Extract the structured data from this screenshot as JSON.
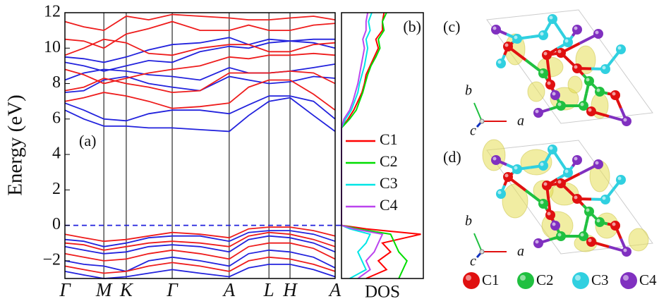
{
  "chart_data": [
    {
      "type": "line",
      "panel_label": "(a)",
      "ylabel": "Energy (eV)",
      "x": [
        0,
        0.07,
        0.144,
        0.227,
        0.31,
        0.397,
        0.5,
        0.608,
        0.68,
        0.755,
        0.833,
        0.92,
        1
      ],
      "xlim": [
        0,
        1
      ],
      "xticks": [
        {
          "value": 0,
          "label": "Γ"
        },
        {
          "value": 0.144,
          "label": "M"
        },
        {
          "value": 0.227,
          "label": "K"
        },
        {
          "value": 0.397,
          "label": "Γ"
        },
        {
          "value": 0.608,
          "label": "A"
        },
        {
          "value": 0.755,
          "label": "L"
        },
        {
          "value": 0.833,
          "label": "H"
        },
        {
          "value": 1,
          "label": "A"
        }
      ],
      "ylim": [
        -3,
        12
      ],
      "yticks": [
        {
          "value": -2,
          "label": "−2"
        },
        0,
        2,
        4,
        6,
        8,
        10,
        12
      ],
      "fermi_level": 0,
      "series": [
        {
          "color": "#2222dd",
          "values": [
            6.5,
            6.0,
            5.6,
            5.6,
            5.5,
            5.5,
            5.4,
            5.3,
            6.2,
            7.0,
            7.2,
            6.2,
            5.3
          ]
        },
        {
          "color": "#2222dd",
          "values": [
            6.9,
            6.5,
            6.0,
            5.9,
            6.3,
            6.5,
            6.5,
            6.3,
            6.8,
            7.3,
            7.3,
            7.0,
            6.0
          ]
        },
        {
          "color": "#2222dd",
          "values": [
            7.5,
            7.6,
            8.2,
            8.4,
            8.0,
            7.8,
            7.6,
            8.4,
            8.2,
            8.0,
            8.1,
            8.4,
            8.3
          ]
        },
        {
          "color": "#2222dd",
          "values": [
            8.2,
            8.6,
            8.8,
            8.7,
            8.5,
            8.4,
            8.2,
            8.9,
            8.6,
            8.6,
            8.7,
            8.9,
            9.1
          ]
        },
        {
          "color": "#2222dd",
          "values": [
            9.2,
            9.0,
            8.7,
            9.0,
            9.3,
            9.2,
            9.8,
            10.1,
            10.0,
            10.3,
            10.4,
            10.3,
            10.0
          ]
        },
        {
          "color": "#2222dd",
          "values": [
            9.5,
            9.4,
            9.2,
            9.5,
            9.9,
            10.2,
            10.3,
            10.6,
            10.2,
            10.5,
            10.4,
            10.5,
            10.5
          ]
        },
        {
          "color": "#ee1c1c",
          "values": [
            7.0,
            7.2,
            7.5,
            7.3,
            7.0,
            6.6,
            6.7,
            6.9,
            7.8,
            8.2,
            8.2,
            7.4,
            6.5
          ]
        },
        {
          "color": "#ee1c1c",
          "values": [
            7.6,
            7.8,
            8.3,
            8.0,
            7.8,
            7.5,
            7.6,
            8.6,
            8.6,
            8.6,
            8.7,
            8.6,
            8.0
          ]
        },
        {
          "color": "#ee1c1c",
          "values": [
            8.8,
            8.5,
            8.0,
            8.3,
            8.6,
            8.8,
            9.0,
            9.5,
            9.4,
            9.6,
            9.6,
            9.7,
            9.6
          ]
        },
        {
          "color": "#ee1c1c",
          "values": [
            9.6,
            10.0,
            10.5,
            10.3,
            9.7,
            9.6,
            10.0,
            10.2,
            10.2,
            9.8,
            9.8,
            10.2,
            10.3
          ]
        },
        {
          "color": "#ee1c1c",
          "values": [
            10.5,
            10.4,
            10.0,
            10.8,
            11.1,
            11.5,
            11.0,
            11.0,
            11.3,
            11.0,
            11.0,
            11.3,
            11.4
          ]
        },
        {
          "color": "#ee1c1c",
          "values": [
            11.5,
            11.2,
            11.0,
            11.8,
            11.6,
            11.9,
            11.8,
            11.7,
            11.6,
            11.6,
            11.7,
            11.8,
            11.6
          ]
        },
        {
          "color": "#2222dd",
          "values": [
            -0.8,
            -0.9,
            -1.2,
            -1.0,
            -0.7,
            -0.6,
            -0.6,
            -0.9,
            -0.4,
            -0.3,
            -0.3,
            -0.5,
            -0.9
          ]
        },
        {
          "color": "#2222dd",
          "values": [
            -1.2,
            -1.4,
            -1.6,
            -1.5,
            -1.2,
            -1.1,
            -1.2,
            -1.5,
            -0.8,
            -0.6,
            -0.7,
            -1.0,
            -1.5
          ]
        },
        {
          "color": "#2222dd",
          "values": [
            -2.0,
            -2.2,
            -2.3,
            -2.6,
            -2.0,
            -1.8,
            -2.0,
            -2.3,
            -1.6,
            -1.4,
            -1.5,
            -1.8,
            -2.4
          ]
        },
        {
          "color": "#2222dd",
          "values": [
            -2.6,
            -2.8,
            -3.0,
            -2.9,
            -2.7,
            -2.5,
            -2.7,
            -2.9,
            -2.4,
            -2.2,
            -2.2,
            -2.5,
            -2.9
          ]
        },
        {
          "color": "#ee1c1c",
          "values": [
            -0.5,
            -0.7,
            -0.9,
            -0.8,
            -0.6,
            -0.4,
            -0.5,
            -0.7,
            -0.2,
            -0.1,
            -0.1,
            -0.3,
            -0.6
          ]
        },
        {
          "color": "#ee1c1c",
          "values": [
            -1.0,
            -1.1,
            -1.4,
            -1.2,
            -1.0,
            -0.9,
            -1.0,
            -1.2,
            -0.6,
            -0.4,
            -0.5,
            -0.8,
            -1.2
          ]
        },
        {
          "color": "#ee1c1c",
          "values": [
            -1.6,
            -1.8,
            -2.0,
            -1.9,
            -1.6,
            -1.4,
            -1.6,
            -1.9,
            -1.2,
            -1.0,
            -1.0,
            -1.3,
            -1.9
          ]
        },
        {
          "color": "#ee1c1c",
          "values": [
            -2.3,
            -2.5,
            -2.7,
            -2.6,
            -2.3,
            -2.1,
            -2.3,
            -2.6,
            -2.0,
            -1.8,
            -1.9,
            -2.2,
            -2.6
          ]
        }
      ]
    },
    {
      "type": "line",
      "orientation": "vertical",
      "panel_label": "(b)",
      "xlabel": "DOS",
      "legend": true,
      "x": [
        -3,
        -2.5,
        -2,
        -1.5,
        -1,
        -0.5,
        -0.2,
        0,
        2,
        4,
        5.5,
        6,
        6.5,
        7,
        7.5,
        8,
        8.5,
        9,
        9.5,
        10,
        10.5,
        11,
        11.5,
        12
      ],
      "xlim": [
        -3,
        12
      ],
      "ylim": [
        0,
        1
      ],
      "series": [
        {
          "name": "C1",
          "color": "#ff0000",
          "values": [
            0.3,
            0.55,
            0.45,
            0.6,
            0.5,
            0.97,
            0.3,
            0,
            0,
            0,
            0,
            0.08,
            0.15,
            0.2,
            0.25,
            0.28,
            0.3,
            0.35,
            0.4,
            0.45,
            0.42,
            0.5,
            0.5,
            0.52
          ]
        },
        {
          "name": "C2",
          "color": "#00dd00",
          "values": [
            0.7,
            0.75,
            0.8,
            0.7,
            0.65,
            0.6,
            0.2,
            0,
            0,
            0,
            0,
            0.1,
            0.18,
            0.22,
            0.26,
            0.29,
            0.32,
            0.36,
            0.42,
            0.47,
            0.45,
            0.52,
            0.5,
            0.55
          ]
        },
        {
          "name": "C3",
          "color": "#00e5e5",
          "values": [
            0.1,
            0.3,
            0.25,
            0.2,
            0.3,
            0.35,
            0.1,
            0,
            0,
            0,
            0,
            0.05,
            0.12,
            0.16,
            0.2,
            0.22,
            0.25,
            0.28,
            0.3,
            0.32,
            0.3,
            0.35,
            0.33,
            0.37
          ]
        },
        {
          "name": "C4",
          "color": "#bb44ee",
          "values": [
            0.2,
            0.35,
            0.3,
            0.4,
            0.45,
            0.5,
            0.15,
            0,
            0,
            0,
            0,
            0.03,
            0.1,
            0.14,
            0.17,
            0.2,
            0.22,
            0.24,
            0.26,
            0.28,
            0.26,
            0.3,
            0.3,
            0.32
          ]
        }
      ]
    }
  ],
  "structures": {
    "panels": [
      "(c)",
      "(d)"
    ],
    "axes": [
      "a",
      "b",
      "c"
    ],
    "atoms": [
      {
        "name": "C1",
        "color": "#e01010"
      },
      {
        "name": "C2",
        "color": "#20c040"
      },
      {
        "name": "C3",
        "color": "#30d0e0"
      },
      {
        "name": "C4",
        "color": "#8030c0"
      }
    ]
  }
}
